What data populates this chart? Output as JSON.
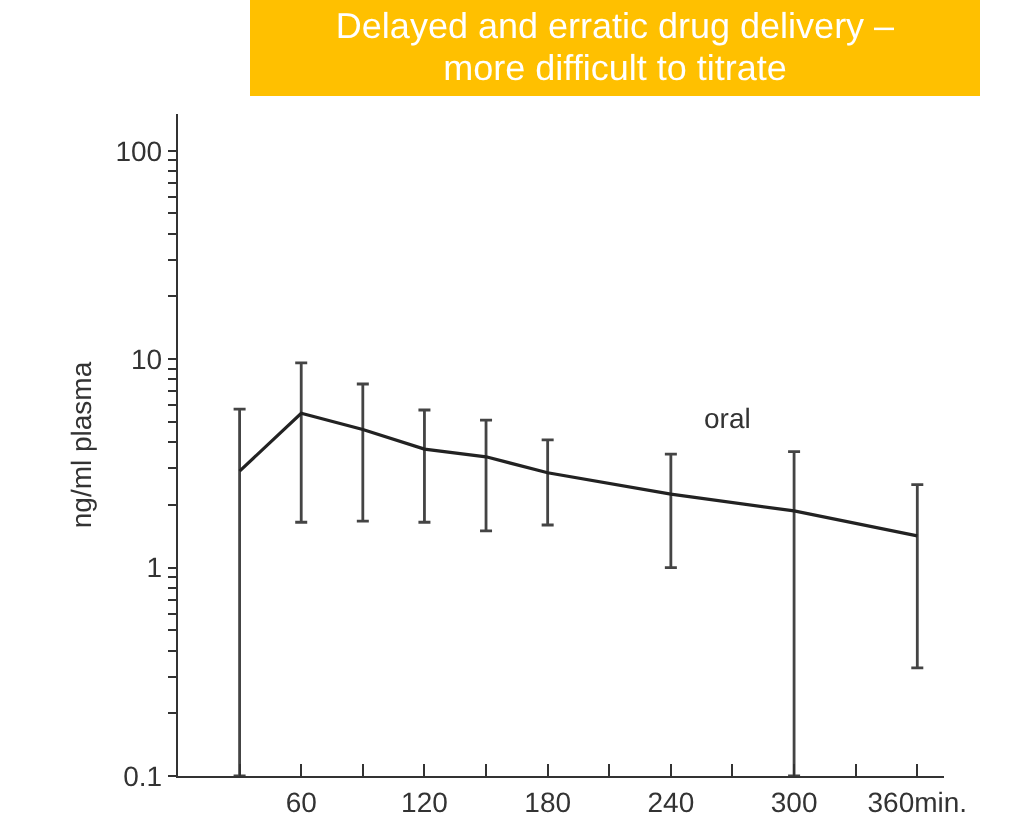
{
  "chart_data": {
    "type": "line",
    "title": "Delayed and erratic drug delivery – more difficult to titrate",
    "ylabel": "ng/ml plasma",
    "x": [
      30,
      60,
      90,
      120,
      150,
      180,
      240,
      300,
      360
    ],
    "series": [
      {
        "name": "oral",
        "color": "#222222",
        "values": [
          2.9,
          5.5,
          4.6,
          3.7,
          3.4,
          2.85,
          2.25,
          1.87,
          1.42
        ],
        "errors": [
          [
            0.1,
            5.75
          ],
          [
            1.65,
            9.6
          ],
          [
            1.67,
            7.6
          ],
          [
            1.65,
            5.7
          ],
          [
            1.5,
            5.1
          ],
          [
            1.6,
            4.1
          ],
          [
            1.0,
            3.5
          ],
          [
            0.1,
            3.6
          ],
          [
            0.33,
            2.5
          ]
        ]
      }
    ],
    "log": "y",
    "xlim": [
      0,
      373
    ],
    "ylim": [
      0.1,
      150
    ],
    "xticks": [
      {
        "value": 30,
        "label": null
      },
      60,
      {
        "value": 90,
        "label": null
      },
      120,
      {
        "value": 150,
        "label": null
      },
      180,
      {
        "value": 210,
        "label": null
      },
      240,
      {
        "value": 270,
        "label": null
      },
      300,
      {
        "value": 330,
        "label": null
      },
      {
        "value": 360,
        "label": "360min."
      }
    ],
    "yticks": [
      0.1,
      {
        "value": 0.2,
        "label": null
      },
      {
        "value": 0.3,
        "label": null
      },
      {
        "value": 0.4,
        "label": null
      },
      {
        "value": 0.5,
        "label": null
      },
      {
        "value": 0.6,
        "label": null
      },
      {
        "value": 0.7,
        "label": null
      },
      {
        "value": 0.8,
        "label": null
      },
      {
        "value": 0.9,
        "label": null
      },
      1,
      {
        "value": 2,
        "label": null
      },
      {
        "value": 3,
        "label": null
      },
      {
        "value": 4,
        "label": null
      },
      {
        "value": 5,
        "label": null
      },
      {
        "value": 6,
        "label": null
      },
      {
        "value": 7,
        "label": null
      },
      {
        "value": 8,
        "label": null
      },
      {
        "value": 9,
        "label": null
      },
      10,
      {
        "value": 20,
        "label": null
      },
      {
        "value": 30,
        "label": null
      },
      {
        "value": 40,
        "label": null
      },
      {
        "value": 50,
        "label": null
      },
      {
        "value": 60,
        "label": null
      },
      {
        "value": 70,
        "label": null
      },
      {
        "value": 80,
        "label": null
      },
      {
        "value": 90,
        "label": null
      },
      100
    ],
    "grid": false,
    "marker": "none",
    "line_style": "solid",
    "legend": false
  }
}
